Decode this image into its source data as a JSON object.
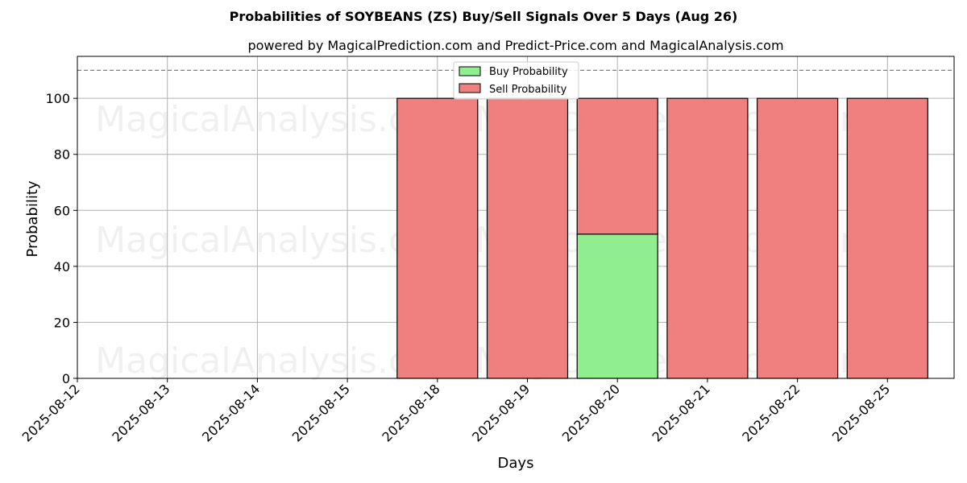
{
  "chart_data": {
    "type": "bar",
    "stacked": true,
    "title": "Probabilities of SOYBEANS (ZS) Buy/Sell Signals Over 5 Days (Aug 26)",
    "subtitle": "powered by MagicalPrediction.com and Predict-Price.com and MagicalAnalysis.com",
    "xlabel": "Days",
    "ylabel": "Probability",
    "categories": [
      "2025-08-12",
      "2025-08-13",
      "2025-08-14",
      "2025-08-15",
      "2025-08-18",
      "2025-08-19",
      "2025-08-20",
      "2025-08-21",
      "2025-08-22",
      "2025-08-25"
    ],
    "series": [
      {
        "name": "Buy Probability",
        "color": "#90ee90",
        "values": [
          null,
          null,
          null,
          null,
          0,
          0,
          51.5,
          0,
          0,
          0
        ]
      },
      {
        "name": "Sell Probability",
        "color": "#f08080",
        "values": [
          null,
          null,
          null,
          null,
          100,
          100,
          48.5,
          100,
          100,
          100
        ]
      }
    ],
    "ylim": [
      0,
      115
    ],
    "yticks": [
      0,
      20,
      40,
      60,
      80,
      100
    ],
    "reference_line": 110,
    "grid": true,
    "legend_position": "top-center"
  },
  "watermarks": [
    "MagicalAnalysis.com",
    "MagicalPrediction.com",
    "MagicalAnalysis.com",
    "MagicalPrediction.com",
    "MagicalAnalysis.com",
    "MagicalPrediction.com"
  ]
}
